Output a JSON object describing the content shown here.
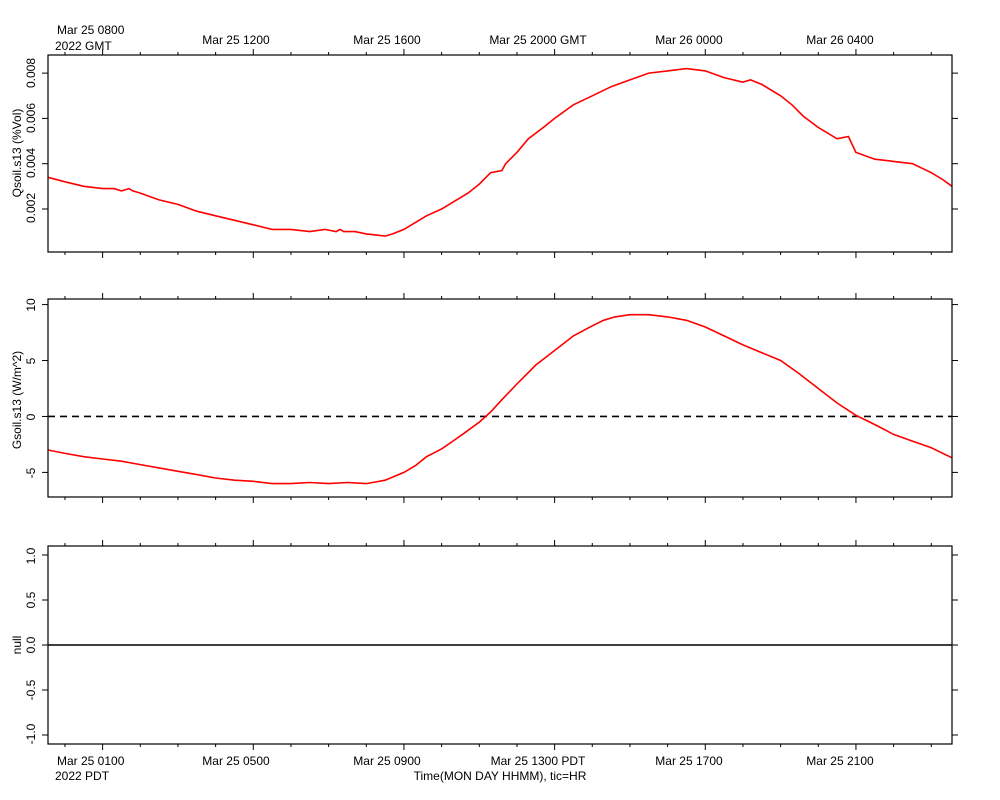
{
  "header": {
    "gmt_first_label_line1": "Mar 25 0800",
    "gmt_first_label_line2": "2022 GMT",
    "gmt_labels": [
      "Mar 25 1200",
      "Mar 25 1600",
      "Mar 25 2000 GMT",
      "Mar 26 0000",
      "Mar 26 0400"
    ]
  },
  "footer": {
    "pdt_first_label_line1": "Mar 25 0100",
    "pdt_first_label_line2": "2022 PDT",
    "pdt_labels": [
      "Mar 25 0500",
      "Mar 25 0900",
      "Mar 25 1300 PDT",
      "Mar 25 1700",
      "Mar 25 2100"
    ],
    "xlabel": "Time(MON DAY HHMM), tic=HR"
  },
  "colors": {
    "series": "#ff0000",
    "axes": "#000000"
  },
  "chart_data": [
    {
      "type": "line",
      "ylabel": "Qsoil.s13 (%Vol)",
      "ylim": [
        0.0001,
        0.0088
      ],
      "yticks": [
        0.002,
        0.004,
        0.006,
        0.008
      ],
      "ytick_labels": [
        "0.002",
        "0.004",
        "0.006",
        "0.008"
      ],
      "x_unit": "hours since Mar 25 0100 PDT",
      "xlim": [
        -1.45,
        22.55
      ],
      "series": [
        {
          "x": [
            -1.45,
            -1.0,
            -0.5,
            0,
            0.3,
            0.5,
            0.7,
            0.8,
            1.0,
            1.5,
            2.0,
            2.5,
            3.0,
            3.5,
            4.0,
            4.5,
            5.0,
            5.5,
            5.9,
            6.2,
            6.3,
            6.4,
            6.7,
            7.0,
            7.5,
            7.7,
            8.0,
            8.3,
            8.6,
            9.0,
            9.3,
            9.7,
            10.0,
            10.3,
            10.6,
            10.7,
            11.0,
            11.3,
            11.7,
            12.0,
            12.5,
            13.0,
            13.5,
            14.0,
            14.5,
            15.0,
            15.5,
            16.0,
            16.5,
            17.0,
            17.2,
            17.5,
            18.0,
            18.3,
            18.6,
            19.0,
            19.5,
            19.8,
            20.0,
            20.5,
            21.0,
            21.5,
            22.0,
            22.3,
            22.55
          ],
          "y": [
            0.0034,
            0.0032,
            0.003,
            0.0029,
            0.0029,
            0.0028,
            0.0029,
            0.0028,
            0.0027,
            0.0024,
            0.0022,
            0.0019,
            0.0017,
            0.0015,
            0.0013,
            0.0011,
            0.0011,
            0.001,
            0.0011,
            0.001,
            0.0011,
            0.001,
            0.001,
            0.0009,
            0.0008,
            0.0009,
            0.0011,
            0.0014,
            0.0017,
            0.002,
            0.0023,
            0.0027,
            0.0031,
            0.0036,
            0.0037,
            0.004,
            0.0045,
            0.0051,
            0.0056,
            0.006,
            0.0066,
            0.007,
            0.0074,
            0.0077,
            0.008,
            0.0081,
            0.0082,
            0.0081,
            0.0078,
            0.0076,
            0.0077,
            0.0075,
            0.007,
            0.0066,
            0.0061,
            0.0056,
            0.0051,
            0.0052,
            0.0045,
            0.0042,
            0.0041,
            0.004,
            0.0036,
            0.0033,
            0.003
          ]
        }
      ]
    },
    {
      "type": "line",
      "ylabel": "Gsoil.s13 (W/m^2)",
      "ylim": [
        -7.2,
        10.5
      ],
      "yticks": [
        -5,
        0,
        5,
        10
      ],
      "ytick_labels": [
        "-5",
        "0",
        "5",
        "10"
      ],
      "reference_line": 0,
      "x_unit": "hours since Mar 25 0100 PDT",
      "xlim": [
        -1.45,
        22.55
      ],
      "series": [
        {
          "x": [
            -1.45,
            -1.0,
            -0.5,
            0,
            0.5,
            1.0,
            1.5,
            2.0,
            2.5,
            3.0,
            3.5,
            4.0,
            4.5,
            5.0,
            5.5,
            6.0,
            6.5,
            7.0,
            7.5,
            8.0,
            8.3,
            8.6,
            9.0,
            9.3,
            9.6,
            10.0,
            10.3,
            10.6,
            11.0,
            11.5,
            12.0,
            12.5,
            13.0,
            13.3,
            13.6,
            14.0,
            14.5,
            15.0,
            15.5,
            16.0,
            16.5,
            17.0,
            17.5,
            18.0,
            18.5,
            19.0,
            19.5,
            20.0,
            20.3,
            20.6,
            21.0,
            21.5,
            22.0,
            22.55
          ],
          "y": [
            -3.0,
            -3.3,
            -3.6,
            -3.8,
            -4.0,
            -4.3,
            -4.6,
            -4.9,
            -5.2,
            -5.5,
            -5.7,
            -5.8,
            -6.0,
            -6.0,
            -5.9,
            -6.0,
            -5.9,
            -6.0,
            -5.7,
            -5.0,
            -4.4,
            -3.6,
            -2.9,
            -2.2,
            -1.5,
            -0.5,
            0.4,
            1.5,
            2.9,
            4.6,
            5.9,
            7.2,
            8.1,
            8.6,
            8.9,
            9.1,
            9.1,
            8.9,
            8.6,
            8.0,
            7.2,
            6.4,
            5.7,
            5.0,
            3.8,
            2.5,
            1.2,
            0.1,
            -0.4,
            -0.9,
            -1.6,
            -2.2,
            -2.8,
            -3.7
          ]
        }
      ]
    },
    {
      "type": "line",
      "ylabel": "null",
      "ylim": [
        -1.1,
        1.1
      ],
      "yticks": [
        -1.0,
        -0.5,
        0.0,
        0.5,
        1.0
      ],
      "ytick_labels": [
        "-1.0",
        "-0.5",
        "0.0",
        "0.5",
        "1.0"
      ],
      "x_unit": "hours since Mar 25 0100 PDT",
      "xlim": [
        -1.45,
        22.55
      ],
      "series": [
        {
          "x": [
            -1.45,
            22.55
          ],
          "y": [
            0,
            0
          ]
        }
      ]
    }
  ]
}
